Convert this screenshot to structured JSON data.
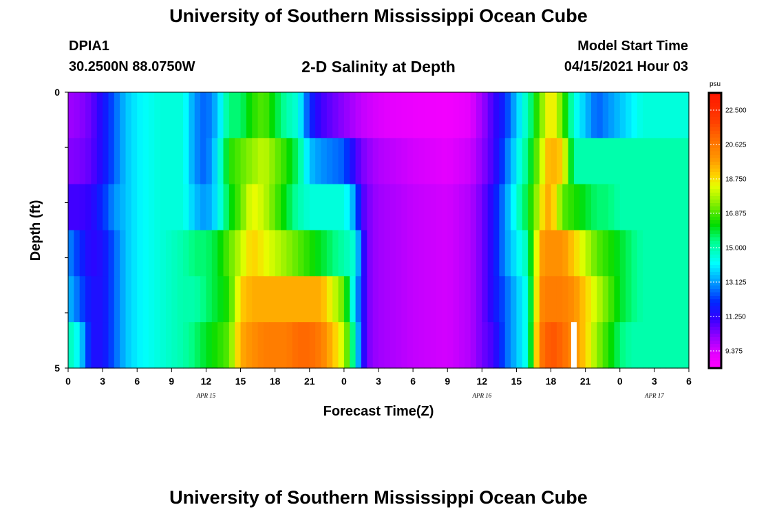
{
  "header": {
    "title": "University of Southern Mississippi Ocean Cube",
    "station": "DPIA1",
    "coords": "30.2500N  88.0750W",
    "subtitle": "2-D Salinity at Depth",
    "model_start_label": "Model Start Time",
    "model_start_value": "04/15/2021 Hour 03"
  },
  "footer": {
    "title": "University of Southern Mississippi Ocean Cube"
  },
  "chart_data": {
    "type": "heatmap",
    "title": "2-D Salinity at Depth",
    "xlabel": "Forecast Time(Z)",
    "ylabel": "Depth (ft)",
    "x_range_hours": [
      0,
      54
    ],
    "x_tick_labels": [
      "0",
      "3",
      "6",
      "9",
      "12",
      "15",
      "18",
      "21",
      "0",
      "3",
      "6",
      "9",
      "12",
      "15",
      "18",
      "21",
      "0",
      "3",
      "6"
    ],
    "date_labels": [
      {
        "text": "APR 15",
        "hour": 12
      },
      {
        "text": "APR 16",
        "hour": 36
      },
      {
        "text": "APR 17",
        "hour": 51
      }
    ],
    "y_range_ft": [
      0,
      5
    ],
    "y_tick_labels": [
      "0",
      "5"
    ],
    "depth_levels_ft": [
      0,
      1,
      2,
      3,
      4,
      5
    ],
    "colorbar": {
      "unit": "psu",
      "min": 8.4375,
      "max": 23.4375,
      "labels": [
        "22.500",
        "20.625",
        "18.750",
        "16.875",
        "15.000",
        "13.125",
        "11.250",
        "9.375"
      ]
    },
    "key_hours": [
      0,
      1,
      2,
      3,
      4,
      5,
      6,
      8,
      10,
      11,
      12,
      13,
      14,
      15,
      16,
      17,
      19,
      20,
      21,
      22,
      24,
      25,
      25.5,
      26,
      26.5,
      27,
      30,
      33,
      35,
      36,
      37,
      38,
      39,
      40,
      41,
      41.5,
      42,
      43,
      44,
      45,
      46,
      47,
      48,
      49,
      50,
      51,
      52,
      54
    ],
    "salinity_rows": [
      [
        10.0,
        10.2,
        10.6,
        11.5,
        12.5,
        13.5,
        14.0,
        14.5,
        14.5,
        13.0,
        12.5,
        13.5,
        15.5,
        15.5,
        16.5,
        17.0,
        15.0,
        14.5,
        12.0,
        11.0,
        10.2,
        9.8,
        9.6,
        9.5,
        9.4,
        9.3,
        9.0,
        8.8,
        9.2,
        10.0,
        11.0,
        12.0,
        13.5,
        15.0,
        17.0,
        18.0,
        19.0,
        17.0,
        14.5,
        13.5,
        12.5,
        13.0,
        13.5,
        14.0,
        14.5,
        14.5,
        14.5,
        14.5
      ],
      [
        10.3,
        10.4,
        10.7,
        11.5,
        12.5,
        13.5,
        14.0,
        14.5,
        14.5,
        13.0,
        12.5,
        14.0,
        16.5,
        17.0,
        17.5,
        18.0,
        16.5,
        15.5,
        13.5,
        13.0,
        12.5,
        11.0,
        10.5,
        10.2,
        10.0,
        9.8,
        9.4,
        9.2,
        9.5,
        10.2,
        11.0,
        12.5,
        14.0,
        15.5,
        17.5,
        19.0,
        19.5,
        19.0,
        15.0,
        15.0,
        15.0,
        15.0,
        15.0,
        15.0,
        15.0,
        15.0,
        15.0,
        15.0
      ],
      [
        11.0,
        11.0,
        11.2,
        12.0,
        13.0,
        13.5,
        14.0,
        14.5,
        14.5,
        13.5,
        13.0,
        14.0,
        16.0,
        17.0,
        18.5,
        18.0,
        16.0,
        15.0,
        14.5,
        14.5,
        14.5,
        13.0,
        11.0,
        10.5,
        10.2,
        10.0,
        9.6,
        9.4,
        9.8,
        10.5,
        11.5,
        13.0,
        14.5,
        16.0,
        18.0,
        19.5,
        19.5,
        17.0,
        16.5,
        16.0,
        15.5,
        15.5,
        15.0,
        15.0,
        15.0,
        15.0,
        15.0,
        15.0
      ],
      [
        13.0,
        12.0,
        11.2,
        11.5,
        12.5,
        13.5,
        14.0,
        14.5,
        15.0,
        15.5,
        15.5,
        16.0,
        17.0,
        18.0,
        19.0,
        18.5,
        17.5,
        17.0,
        16.5,
        16.0,
        15.0,
        14.5,
        12.0,
        10.5,
        10.2,
        10.0,
        9.6,
        9.4,
        9.8,
        10.5,
        11.5,
        13.0,
        14.0,
        15.0,
        19.5,
        20.0,
        20.0,
        20.0,
        19.0,
        18.0,
        17.0,
        16.5,
        16.0,
        15.5,
        15.0,
        15.0,
        15.0,
        15.0
      ],
      [
        13.5,
        12.5,
        11.5,
        11.5,
        12.5,
        13.5,
        14.0,
        14.5,
        15.0,
        15.0,
        15.5,
        16.0,
        16.5,
        19.0,
        19.5,
        19.5,
        19.5,
        19.5,
        19.5,
        19.5,
        17.0,
        13.5,
        12.0,
        10.5,
        10.2,
        10.0,
        9.6,
        9.4,
        9.8,
        10.5,
        11.5,
        12.5,
        13.5,
        14.5,
        20.0,
        20.5,
        20.5,
        20.5,
        20.0,
        19.0,
        18.0,
        17.0,
        16.0,
        15.5,
        15.0,
        15.0,
        15.0,
        15.0
      ],
      [
        15.0,
        14.0,
        11.5,
        11.5,
        12.5,
        13.5,
        14.0,
        14.5,
        15.0,
        15.5,
        16.0,
        16.5,
        17.0,
        19.5,
        20.0,
        20.5,
        20.5,
        21.0,
        21.0,
        20.5,
        18.0,
        14.5,
        12.0,
        10.5,
        10.2,
        10.0,
        9.6,
        9.4,
        9.8,
        10.5,
        11.0,
        12.5,
        13.5,
        14.5,
        20.5,
        21.0,
        21.5,
        21.0,
        20.0,
        19.0,
        17.5,
        16.5,
        15.5,
        15.0,
        15.0,
        15.0,
        15.0,
        15.0
      ]
    ],
    "missing_cell": {
      "hour": 44,
      "depth_ft": 5
    }
  }
}
